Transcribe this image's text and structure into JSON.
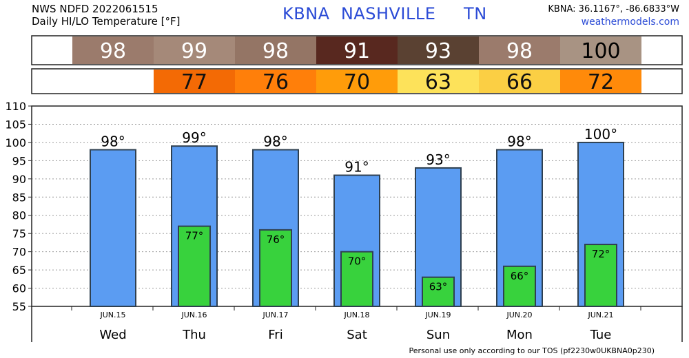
{
  "header": {
    "product_line": "NWS NDFD 2022061515",
    "title_line": "Daily HI/LO Temperature [°F]",
    "station_title": "KBNA  NASHVILLE     TN",
    "coords": "KBNA: 36.1167°, -86.6833°W",
    "site": "weathermodels.com"
  },
  "footer": {
    "note": "Personal use only according to our TOS (pf2230w0UKBNA0p230)"
  },
  "colors": {
    "hi_bar": "#5b9cf2",
    "lo_bar": "#38d23d",
    "bar_stroke": "#2f4050",
    "hi_strip": [
      "#9b7b6c",
      "#a58979",
      "#947565",
      "#58281f",
      "#5a4132",
      "#9b7b6c",
      "#a89383"
    ],
    "lo_strip": [
      null,
      "#f36a05",
      "#ff7f0a",
      "#ff9c0a",
      "#fde25a",
      "#fbcf44",
      "#ff8a0a"
    ]
  },
  "chart_data": {
    "type": "bar",
    "title": "Daily HI/LO Temperature [°F]",
    "categories": [
      "Wed",
      "Thu",
      "Fri",
      "Sat",
      "Sun",
      "Mon",
      "Tue"
    ],
    "dates": [
      "JUN.15",
      "JUN.16",
      "JUN.17",
      "JUN.18",
      "JUN.19",
      "JUN.20",
      "JUN.21"
    ],
    "series": [
      {
        "values": [
          98,
          99,
          98,
          91,
          93,
          98,
          100
        ]
      },
      {
        "values": [
          null,
          77,
          76,
          70,
          63,
          66,
          72
        ]
      }
    ],
    "hi_labels": [
      "98°",
      "99°",
      "98°",
      "91°",
      "93°",
      "98°",
      "100°"
    ],
    "lo_labels": [
      "",
      "77°",
      "76°",
      "70°",
      "63°",
      "66°",
      "72°"
    ],
    "hi_strip_labels": [
      "98",
      "99",
      "98",
      "91",
      "93",
      "98",
      "100"
    ],
    "lo_strip_labels": [
      "",
      "77",
      "76",
      "70",
      "63",
      "66",
      "72"
    ],
    "yticks": [
      "110",
      "105",
      "100",
      "95",
      "90",
      "85",
      "80",
      "75",
      "70",
      "65",
      "60",
      "55"
    ],
    "ylim": [
      55,
      110
    ],
    "grid": true
  }
}
